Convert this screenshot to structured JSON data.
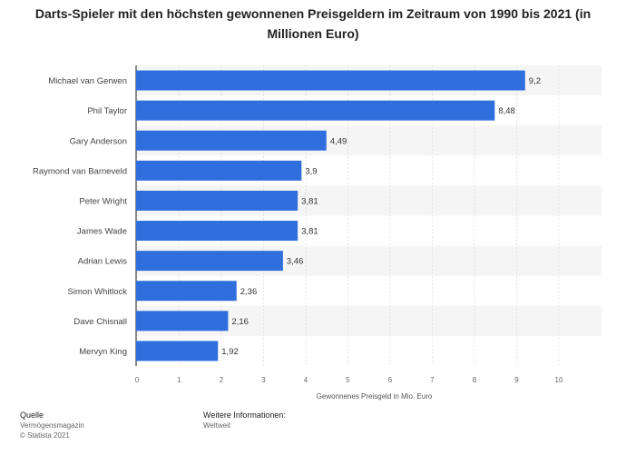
{
  "chart_data": {
    "type": "bar",
    "orientation": "horizontal",
    "title": "Darts-Spieler mit den höchsten gewonnenen Preisgeldern im Zeitraum von 1990 bis 2021 (in Millionen Euro)",
    "categories": [
      "Michael van Gerwen",
      "Phil Taylor",
      "Gary Anderson",
      "Raymond van Barneveld",
      "Peter Wright",
      "James Wade",
      "Adrian Lewis",
      "Simon Whitlock",
      "Dave Chisnall",
      "Mervyn King"
    ],
    "values": [
      9.2,
      8.48,
      4.49,
      3.9,
      3.81,
      3.81,
      3.46,
      2.36,
      2.16,
      1.92
    ],
    "value_labels": [
      "9,2",
      "8,48",
      "4,49",
      "3,9",
      "3,81",
      "3,81",
      "3,46",
      "2,36",
      "2,16",
      "1,92"
    ],
    "xlabel": "Gewonnenes Preisgeld in Mio. Euro",
    "ylabel": "",
    "xlim": [
      0,
      11
    ],
    "xticks": [
      0,
      1,
      2,
      3,
      4,
      5,
      6,
      7,
      8,
      9,
      10
    ],
    "bar_color": "#2f6fdd"
  },
  "footer": {
    "source_heading": "Quelle",
    "source_lines": [
      "Vermögensmagazin",
      "© Statista 2021"
    ],
    "info_heading": "Weitere Informationen:",
    "info_lines": [
      "Weltweit"
    ]
  }
}
